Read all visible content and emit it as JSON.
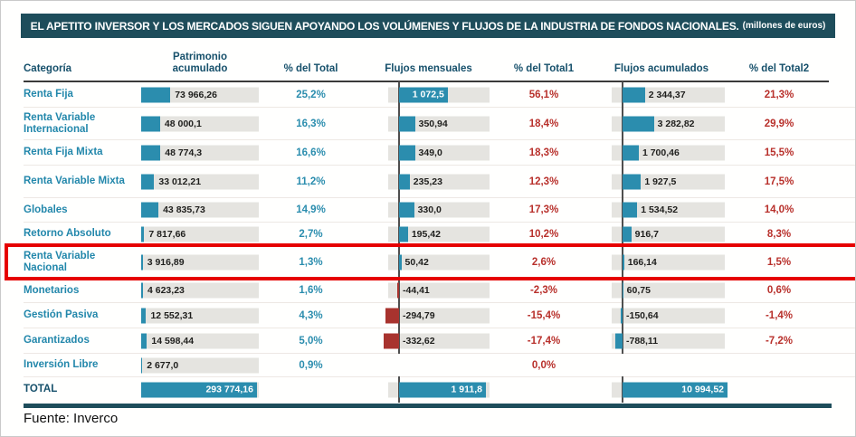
{
  "title": {
    "text": "EL APETITO INVERSOR Y LOS MERCADOS SIGUEN APOYANDO LOS VOLÚMENES  Y FLUJOS DE LA INDUSTRIA DE FONDOS NACIONALES.",
    "unit": "(millones de euros)"
  },
  "source": "Fuente: Inverco",
  "colors": {
    "teal_bar": "#2b8dae",
    "negative_bar_red": "#a8332e",
    "header_band": "#1e4d5b",
    "pct_teal_text": "#2b8dae",
    "pct_red_text": "#b8302b",
    "track_gray": "#e5e4e0",
    "highlight_red": "#e60000"
  },
  "table": {
    "headers": [
      "Categoría",
      "Patrimonio acumulado",
      "% del Total",
      "Flujos mensuales",
      "% del Total1",
      "Flujos acumulados",
      "% del Total2"
    ],
    "rows": [
      {
        "label": "Renta Fija",
        "patrimonio": "73 966,26",
        "patrimonio_v": 73966.26,
        "pct_total": "25,2%",
        "fm": "1 072,5",
        "fm_v": 1072.5,
        "pct_total1": "56,1%",
        "fa": "2 344,37",
        "fa_v": 2344.37,
        "pct_total2": "21,3%",
        "highlight": false,
        "total": false
      },
      {
        "label": "Renta Variable Internacional",
        "patrimonio": "48 000,1",
        "patrimonio_v": 48000.1,
        "pct_total": "16,3%",
        "fm": "350,94",
        "fm_v": 350.94,
        "pct_total1": "18,4%",
        "fa": "3 282,82",
        "fa_v": 3282.82,
        "pct_total2": "29,9%",
        "highlight": false,
        "total": false
      },
      {
        "label": "Renta Fija Mixta",
        "patrimonio": "48 774,3",
        "patrimonio_v": 48774.3,
        "pct_total": "16,6%",
        "fm": "349,0",
        "fm_v": 349.0,
        "pct_total1": "18,3%",
        "fa": "1 700,46",
        "fa_v": 1700.46,
        "pct_total2": "15,5%",
        "highlight": false,
        "total": false
      },
      {
        "label": "Renta Variable Mixta",
        "patrimonio": "33 012,21",
        "patrimonio_v": 33012.21,
        "pct_total": "11,2%",
        "fm": "235,23",
        "fm_v": 235.23,
        "pct_total1": "12,3%",
        "fa": "1 927,5",
        "fa_v": 1927.5,
        "pct_total2": "17,5%",
        "highlight": false,
        "total": false
      },
      {
        "label": "Globales",
        "patrimonio": "43 835,73",
        "patrimonio_v": 43835.73,
        "pct_total": "14,9%",
        "fm": "330,0",
        "fm_v": 330.0,
        "pct_total1": "17,3%",
        "fa": "1 534,52",
        "fa_v": 1534.52,
        "pct_total2": "14,0%",
        "highlight": false,
        "total": false
      },
      {
        "label": "Retorno Absoluto",
        "patrimonio": "7 817,66",
        "patrimonio_v": 7817.66,
        "pct_total": "2,7%",
        "fm": "195,42",
        "fm_v": 195.42,
        "pct_total1": "10,2%",
        "fa": "916,7",
        "fa_v": 916.7,
        "pct_total2": "8,3%",
        "highlight": false,
        "total": false
      },
      {
        "label": "Renta Variable Nacional",
        "patrimonio": "3 916,89",
        "patrimonio_v": 3916.89,
        "pct_total": "1,3%",
        "fm": "50,42",
        "fm_v": 50.42,
        "pct_total1": "2,6%",
        "fa": "166,14",
        "fa_v": 166.14,
        "pct_total2": "1,5%",
        "highlight": true,
        "total": false
      },
      {
        "label": "Monetarios",
        "patrimonio": "4 623,23",
        "patrimonio_v": 4623.23,
        "pct_total": "1,6%",
        "fm": "-44,41",
        "fm_v": -44.41,
        "pct_total1": "-2,3%",
        "fa": "60,75",
        "fa_v": 60.75,
        "pct_total2": "0,6%",
        "highlight": false,
        "total": false
      },
      {
        "label": "Gestión Pasiva",
        "patrimonio": "12 552,31",
        "patrimonio_v": 12552.31,
        "pct_total": "4,3%",
        "fm": "-294,79",
        "fm_v": -294.79,
        "pct_total1": "-15,4%",
        "fa": "-150,64",
        "fa_v": -150.64,
        "pct_total2": "-1,4%",
        "highlight": false,
        "total": false
      },
      {
        "label": "Garantizados",
        "patrimonio": "14 598,44",
        "patrimonio_v": 14598.44,
        "pct_total": "5,0%",
        "fm": "-332,62",
        "fm_v": -332.62,
        "pct_total1": "-17,4%",
        "fa": "-788,11",
        "fa_v": -788.11,
        "pct_total2": "-7,2%",
        "highlight": false,
        "total": false
      },
      {
        "label": "Inversión Libre",
        "patrimonio": "2 677,0",
        "patrimonio_v": 2677.0,
        "pct_total": "0,9%",
        "fm": null,
        "fm_v": null,
        "pct_total1": "0,0%",
        "fa": null,
        "fa_v": null,
        "pct_total2": null,
        "highlight": false,
        "total": false
      },
      {
        "label": "TOTAL",
        "patrimonio": "293 774,16",
        "patrimonio_v": 293774.16,
        "pct_total": null,
        "fm": "1 911,8",
        "fm_v": 1911.8,
        "pct_total1": null,
        "fa": "10 994,52",
        "fa_v": 10994.52,
        "pct_total2": null,
        "highlight": false,
        "total": true
      }
    ]
  },
  "chart_data": {
    "type": "bar",
    "title": "EL APETITO INVERSOR Y LOS MERCADOS SIGUEN APOYANDO LOS VOLÚMENES Y FLUJOS DE LA INDUSTRIA DE FONDOS NACIONALES.",
    "unit": "millones de euros",
    "categories": [
      "Renta Fija",
      "Renta Variable Internacional",
      "Renta Fija Mixta",
      "Renta Variable Mixta",
      "Globales",
      "Retorno Absoluto",
      "Renta Variable Nacional",
      "Monetarios",
      "Gestión Pasiva",
      "Garantizados",
      "Inversión Libre"
    ],
    "series": [
      {
        "name": "Patrimonio acumulado",
        "values": [
          73966.26,
          48000.1,
          48774.3,
          33012.21,
          43835.73,
          7817.66,
          3916.89,
          4623.23,
          12552.31,
          14598.44,
          2677.0
        ]
      },
      {
        "name": "% del Total",
        "values": [
          25.2,
          16.3,
          16.6,
          11.2,
          14.9,
          2.7,
          1.3,
          1.6,
          4.3,
          5.0,
          0.9
        ]
      },
      {
        "name": "Flujos mensuales",
        "values": [
          1072.5,
          350.94,
          349.0,
          235.23,
          330.0,
          195.42,
          50.42,
          -44.41,
          -294.79,
          -332.62,
          null
        ]
      },
      {
        "name": "% del Total1",
        "values": [
          56.1,
          18.4,
          18.3,
          12.3,
          17.3,
          10.2,
          2.6,
          -2.3,
          -15.4,
          -17.4,
          0.0
        ]
      },
      {
        "name": "Flujos acumulados",
        "values": [
          2344.37,
          3282.82,
          1700.46,
          1927.5,
          1534.52,
          916.7,
          166.14,
          60.75,
          -150.64,
          -788.11,
          null
        ]
      },
      {
        "name": "% del Total2",
        "values": [
          21.3,
          29.9,
          15.5,
          17.5,
          14.0,
          8.3,
          1.5,
          0.6,
          -1.4,
          -7.2,
          null
        ]
      }
    ],
    "totals": {
      "Patrimonio acumulado": 293774.16,
      "Flujos mensuales": 1911.8,
      "Flujos acumulados": 10994.52
    },
    "highlighted_category": "Renta Variable Nacional",
    "legend_position": "none",
    "grid": false,
    "source": "Fuente: Inverco"
  }
}
